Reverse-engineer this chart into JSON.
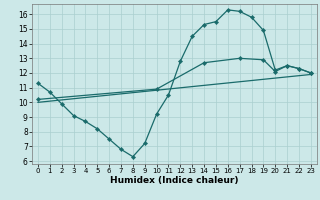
{
  "xlabel": "Humidex (Indice chaleur)",
  "bg_color": "#cce8e8",
  "grid_color": "#aacfcf",
  "line_color": "#1a6b6b",
  "xlim": [
    -0.5,
    23.5
  ],
  "ylim": [
    5.8,
    16.7
  ],
  "xticks": [
    0,
    1,
    2,
    3,
    4,
    5,
    6,
    7,
    8,
    9,
    10,
    11,
    12,
    13,
    14,
    15,
    16,
    17,
    18,
    19,
    20,
    21,
    22,
    23
  ],
  "yticks": [
    6,
    7,
    8,
    9,
    10,
    11,
    12,
    13,
    14,
    15,
    16
  ],
  "line1_x": [
    0,
    1,
    2,
    3,
    4,
    5,
    6,
    7,
    8,
    9,
    10,
    11,
    12,
    13,
    14,
    15,
    16,
    17,
    18,
    19,
    20,
    21,
    22,
    23
  ],
  "line1_y": [
    11.3,
    10.7,
    9.9,
    9.1,
    8.7,
    8.2,
    7.5,
    6.8,
    6.3,
    7.2,
    9.2,
    10.5,
    12.8,
    14.5,
    15.3,
    15.5,
    16.3,
    16.2,
    15.8,
    14.9,
    12.2,
    12.5,
    12.3,
    12.0
  ],
  "line2_x": [
    0,
    10,
    14,
    17,
    19,
    20,
    21,
    22,
    23
  ],
  "line2_y": [
    10.2,
    10.9,
    12.7,
    13.0,
    12.9,
    12.1,
    12.5,
    12.3,
    12.0
  ],
  "line3_x": [
    0,
    23
  ],
  "line3_y": [
    10.0,
    11.9
  ],
  "xlabel_fontsize": 6.5,
  "tick_fontsize": 5.0,
  "lw": 0.9,
  "marker_size": 2.2
}
